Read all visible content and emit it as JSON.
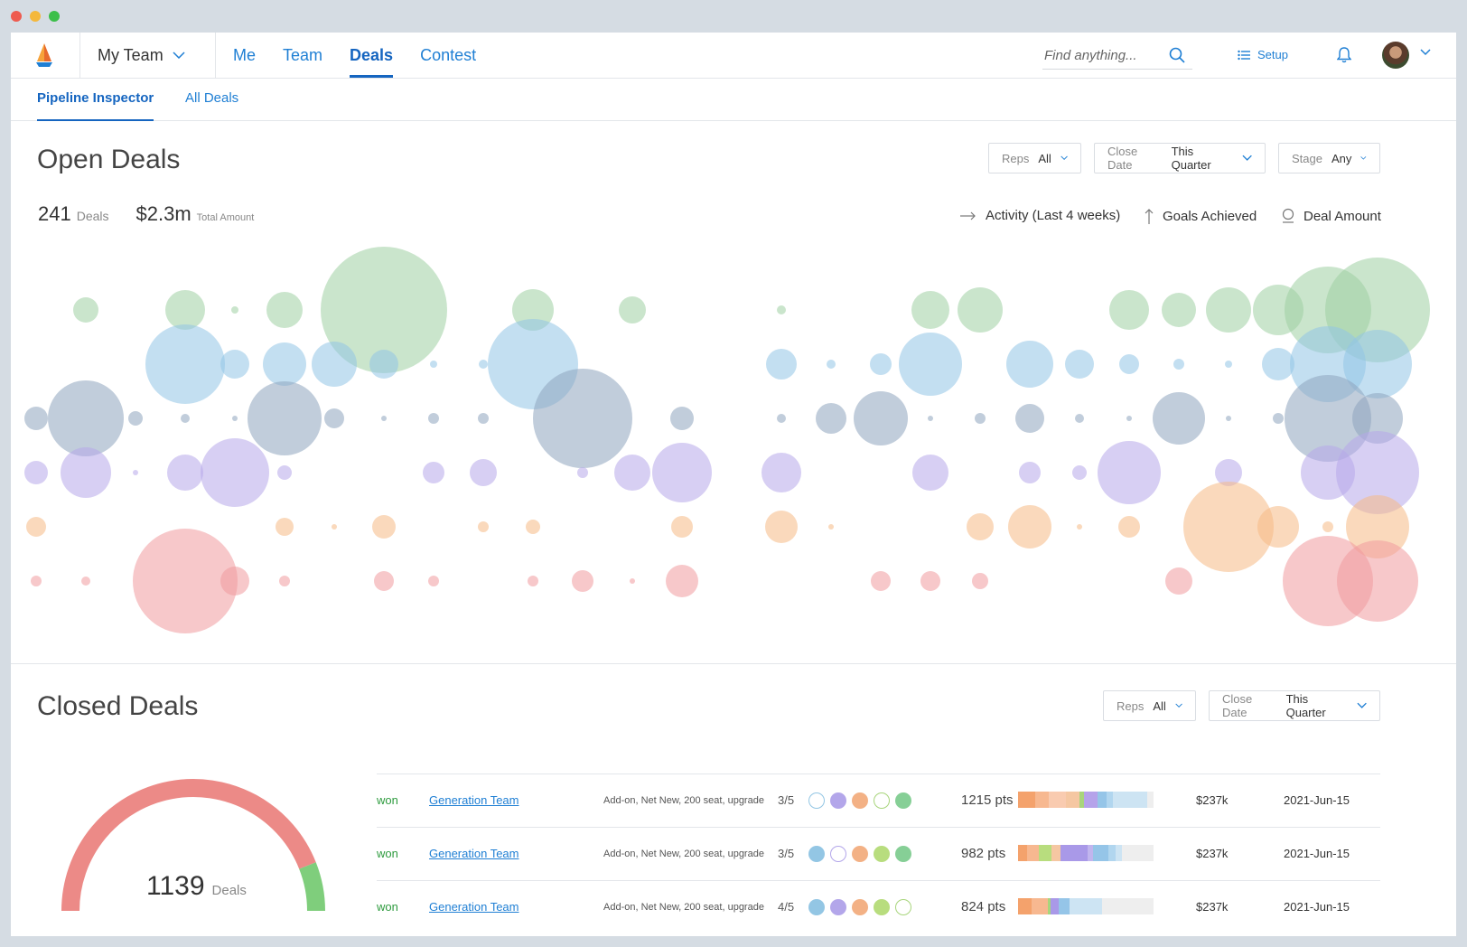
{
  "topbar": {
    "team_switch": "My Team",
    "nav": [
      "Me",
      "Team",
      "Deals",
      "Contest"
    ],
    "active_nav": "Deals",
    "search_placeholder": "Find anything...",
    "setup_label": "Setup"
  },
  "subnav": {
    "tabs": [
      "Pipeline Inspector",
      "All Deals"
    ],
    "active": "Pipeline Inspector"
  },
  "open_deals": {
    "title": "Open Deals",
    "filters": [
      {
        "label": "Reps",
        "value": "All"
      },
      {
        "label": "Close Date",
        "value": "This Quarter"
      },
      {
        "label": "Stage",
        "value": "Any"
      }
    ],
    "deal_count": "241",
    "deal_count_label": "Deals",
    "total_amount": "$2.3m",
    "total_amount_label": "Total Amount",
    "legend": [
      "Activity (Last 4 weeks)",
      "Goals Achieved",
      "Deal Amount"
    ]
  },
  "chart_data": {
    "type": "scatter",
    "title": "",
    "rows": [
      "green",
      "blue",
      "slate",
      "purple",
      "orange",
      "red"
    ],
    "colors": {
      "green": "#9fd0a2",
      "blue": "#92c5e6",
      "slate": "#8ea4bd",
      "purple": "#b7a8ea",
      "orange": "#f6b985",
      "red": "#f09a9e"
    },
    "columns": 28,
    "points": [
      {
        "row": 0,
        "col": 1,
        "size": 14
      },
      {
        "row": 0,
        "col": 3,
        "size": 22
      },
      {
        "row": 0,
        "col": 4,
        "size": 4
      },
      {
        "row": 0,
        "col": 5,
        "size": 20
      },
      {
        "row": 0,
        "col": 7,
        "size": 70
      },
      {
        "row": 0,
        "col": 10,
        "size": 23
      },
      {
        "row": 0,
        "col": 12,
        "size": 15
      },
      {
        "row": 0,
        "col": 15,
        "size": 5
      },
      {
        "row": 0,
        "col": 18,
        "size": 21
      },
      {
        "row": 0,
        "col": 19,
        "size": 25
      },
      {
        "row": 0,
        "col": 22,
        "size": 22
      },
      {
        "row": 0,
        "col": 23,
        "size": 19
      },
      {
        "row": 0,
        "col": 24,
        "size": 25
      },
      {
        "row": 0,
        "col": 25,
        "size": 28
      },
      {
        "row": 0,
        "col": 26,
        "size": 48
      },
      {
        "row": 0,
        "col": 27,
        "size": 58
      },
      {
        "row": 1,
        "col": 3,
        "size": 44
      },
      {
        "row": 1,
        "col": 4,
        "size": 16
      },
      {
        "row": 1,
        "col": 5,
        "size": 24
      },
      {
        "row": 1,
        "col": 6,
        "size": 25
      },
      {
        "row": 1,
        "col": 7,
        "size": 16
      },
      {
        "row": 1,
        "col": 8,
        "size": 4
      },
      {
        "row": 1,
        "col": 9,
        "size": 5
      },
      {
        "row": 1,
        "col": 10,
        "size": 50
      },
      {
        "row": 1,
        "col": 15,
        "size": 17
      },
      {
        "row": 1,
        "col": 16,
        "size": 5
      },
      {
        "row": 1,
        "col": 17,
        "size": 12
      },
      {
        "row": 1,
        "col": 18,
        "size": 35
      },
      {
        "row": 1,
        "col": 20,
        "size": 26
      },
      {
        "row": 1,
        "col": 21,
        "size": 16
      },
      {
        "row": 1,
        "col": 22,
        "size": 11
      },
      {
        "row": 1,
        "col": 23,
        "size": 6
      },
      {
        "row": 1,
        "col": 24,
        "size": 4
      },
      {
        "row": 1,
        "col": 25,
        "size": 18
      },
      {
        "row": 1,
        "col": 26,
        "size": 42
      },
      {
        "row": 1,
        "col": 27,
        "size": 38
      },
      {
        "row": 2,
        "col": 0,
        "size": 13
      },
      {
        "row": 2,
        "col": 1,
        "size": 42
      },
      {
        "row": 2,
        "col": 2,
        "size": 8
      },
      {
        "row": 2,
        "col": 3,
        "size": 5
      },
      {
        "row": 2,
        "col": 4,
        "size": 3
      },
      {
        "row": 2,
        "col": 5,
        "size": 41
      },
      {
        "row": 2,
        "col": 6,
        "size": 11
      },
      {
        "row": 2,
        "col": 7,
        "size": 3
      },
      {
        "row": 2,
        "col": 8,
        "size": 6
      },
      {
        "row": 2,
        "col": 9,
        "size": 6
      },
      {
        "row": 2,
        "col": 11,
        "size": 55
      },
      {
        "row": 2,
        "col": 13,
        "size": 13
      },
      {
        "row": 2,
        "col": 15,
        "size": 5
      },
      {
        "row": 2,
        "col": 16,
        "size": 17
      },
      {
        "row": 2,
        "col": 17,
        "size": 30
      },
      {
        "row": 2,
        "col": 18,
        "size": 3
      },
      {
        "row": 2,
        "col": 19,
        "size": 6
      },
      {
        "row": 2,
        "col": 20,
        "size": 16
      },
      {
        "row": 2,
        "col": 21,
        "size": 5
      },
      {
        "row": 2,
        "col": 22,
        "size": 3
      },
      {
        "row": 2,
        "col": 23,
        "size": 29
      },
      {
        "row": 2,
        "col": 24,
        "size": 3
      },
      {
        "row": 2,
        "col": 25,
        "size": 6
      },
      {
        "row": 2,
        "col": 26,
        "size": 48
      },
      {
        "row": 2,
        "col": 27,
        "size": 28
      },
      {
        "row": 3,
        "col": 0,
        "size": 13
      },
      {
        "row": 3,
        "col": 1,
        "size": 28
      },
      {
        "row": 3,
        "col": 2,
        "size": 3
      },
      {
        "row": 3,
        "col": 3,
        "size": 20
      },
      {
        "row": 3,
        "col": 4,
        "size": 38
      },
      {
        "row": 3,
        "col": 5,
        "size": 8
      },
      {
        "row": 3,
        "col": 8,
        "size": 12
      },
      {
        "row": 3,
        "col": 9,
        "size": 15
      },
      {
        "row": 3,
        "col": 11,
        "size": 6
      },
      {
        "row": 3,
        "col": 12,
        "size": 20
      },
      {
        "row": 3,
        "col": 13,
        "size": 33
      },
      {
        "row": 3,
        "col": 15,
        "size": 22
      },
      {
        "row": 3,
        "col": 18,
        "size": 20
      },
      {
        "row": 3,
        "col": 20,
        "size": 12
      },
      {
        "row": 3,
        "col": 21,
        "size": 8
      },
      {
        "row": 3,
        "col": 22,
        "size": 35
      },
      {
        "row": 3,
        "col": 24,
        "size": 15
      },
      {
        "row": 3,
        "col": 26,
        "size": 30
      },
      {
        "row": 3,
        "col": 27,
        "size": 46
      },
      {
        "row": 4,
        "col": 0,
        "size": 11
      },
      {
        "row": 4,
        "col": 5,
        "size": 10
      },
      {
        "row": 4,
        "col": 6,
        "size": 3
      },
      {
        "row": 4,
        "col": 7,
        "size": 13
      },
      {
        "row": 4,
        "col": 9,
        "size": 6
      },
      {
        "row": 4,
        "col": 10,
        "size": 8
      },
      {
        "row": 4,
        "col": 13,
        "size": 12
      },
      {
        "row": 4,
        "col": 15,
        "size": 18
      },
      {
        "row": 4,
        "col": 16,
        "size": 3
      },
      {
        "row": 4,
        "col": 19,
        "size": 15
      },
      {
        "row": 4,
        "col": 20,
        "size": 24
      },
      {
        "row": 4,
        "col": 21,
        "size": 3
      },
      {
        "row": 4,
        "col": 22,
        "size": 12
      },
      {
        "row": 4,
        "col": 24,
        "size": 50
      },
      {
        "row": 4,
        "col": 25,
        "size": 23
      },
      {
        "row": 4,
        "col": 26,
        "size": 6
      },
      {
        "row": 4,
        "col": 27,
        "size": 35
      },
      {
        "row": 5,
        "col": 0,
        "size": 6
      },
      {
        "row": 5,
        "col": 1,
        "size": 5
      },
      {
        "row": 5,
        "col": 3,
        "size": 58
      },
      {
        "row": 5,
        "col": 4,
        "size": 16
      },
      {
        "row": 5,
        "col": 5,
        "size": 6
      },
      {
        "row": 5,
        "col": 7,
        "size": 11
      },
      {
        "row": 5,
        "col": 8,
        "size": 6
      },
      {
        "row": 5,
        "col": 10,
        "size": 6
      },
      {
        "row": 5,
        "col": 11,
        "size": 12
      },
      {
        "row": 5,
        "col": 12,
        "size": 3
      },
      {
        "row": 5,
        "col": 13,
        "size": 18
      },
      {
        "row": 5,
        "col": 17,
        "size": 11
      },
      {
        "row": 5,
        "col": 18,
        "size": 11
      },
      {
        "row": 5,
        "col": 19,
        "size": 9
      },
      {
        "row": 5,
        "col": 23,
        "size": 15
      },
      {
        "row": 5,
        "col": 26,
        "size": 50
      },
      {
        "row": 5,
        "col": 27,
        "size": 45
      }
    ]
  },
  "closed_deals": {
    "title": "Closed Deals",
    "filters": [
      {
        "label": "Reps",
        "value": "All"
      },
      {
        "label": "Close Date",
        "value": "This Quarter"
      }
    ],
    "gauge": {
      "value": "1139",
      "label": "Deals",
      "won_fraction": 0.12
    },
    "colors": {
      "lost": "#ec8a87",
      "won": "#7fce7c"
    },
    "rows": [
      {
        "status": "won",
        "team": "Generation Team",
        "tags": "Add-on, Net New, 200 seat, upgrade",
        "ratio": "3/5",
        "dots": [
          "outline-blue",
          "#b3a6ea",
          "#f3b185",
          "outline-green",
          "#86cf96"
        ],
        "points": "1215 pts",
        "bar": [
          [
            "#f4a26c",
            10
          ],
          [
            "#f7b890",
            8
          ],
          [
            "#f9cbb0",
            10
          ],
          [
            "#f5c7a2",
            8
          ],
          [
            "#a8d57c",
            3
          ],
          [
            "#b5a3ea",
            8
          ],
          [
            "#95c5e8",
            5
          ],
          [
            "#b1d6ef",
            4
          ],
          [
            "#cde4f3",
            20
          ],
          [
            "#eeeeee",
            4
          ]
        ],
        "amount": "$237k",
        "date": "2021-Jun-15"
      },
      {
        "status": "won",
        "team": "Generation Team",
        "tags": "Add-on, Net New, 200 seat, upgrade",
        "ratio": "3/5",
        "dots": [
          "#93c6e4",
          "outline-purple",
          "#f3b185",
          "#b8dd7e",
          "#86cf96"
        ],
        "points": "982 pts",
        "bar": [
          [
            "#f4a26c",
            6
          ],
          [
            "#f7b890",
            8
          ],
          [
            "#b8dd7e",
            8
          ],
          [
            "#f5c7a2",
            6
          ],
          [
            "#a999e8",
            18
          ],
          [
            "#c1b5ee",
            4
          ],
          [
            "#95c5e8",
            10
          ],
          [
            "#b1d6ef",
            5
          ],
          [
            "#cde4f3",
            4
          ],
          [
            "#eeeeee",
            21
          ]
        ],
        "amount": "$237k",
        "date": "2021-Jun-15"
      },
      {
        "status": "won",
        "team": "Generation Team",
        "tags": "Add-on, Net New, 200 seat, upgrade",
        "ratio": "4/5",
        "dots": [
          "#93c6e4",
          "#b3a6ea",
          "#f3b185",
          "#b8dd7e",
          "outline-green"
        ],
        "points": "824 pts",
        "bar": [
          [
            "#f4a26c",
            10
          ],
          [
            "#f7b890",
            12
          ],
          [
            "#a8d57c",
            2
          ],
          [
            "#a999e8",
            6
          ],
          [
            "#95c5e8",
            8
          ],
          [
            "#cde4f3",
            24
          ],
          [
            "#eeeeee",
            38
          ]
        ],
        "amount": "$237k",
        "date": "2021-Jun-15"
      }
    ]
  }
}
